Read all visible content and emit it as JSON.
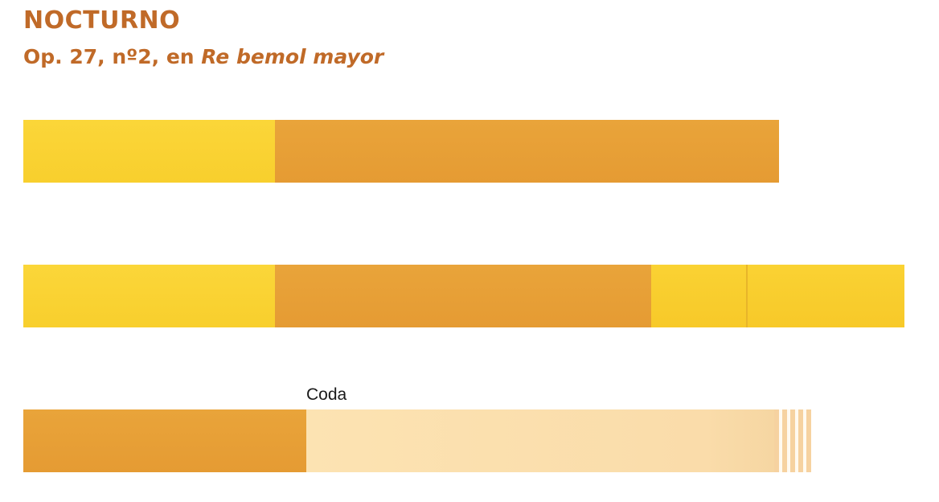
{
  "header": {
    "title": "NOCTURNO",
    "subtitle_prefix": "Op. 27, nº2, en ",
    "subtitle_key": "Re bemol mayor"
  },
  "labels": {
    "coda": "Coda"
  },
  "colors": {
    "heading": "#c06a28",
    "section_yellow": "#fad233",
    "section_orange": "#e59b33",
    "section_cream": "#fce3b2"
  }
}
